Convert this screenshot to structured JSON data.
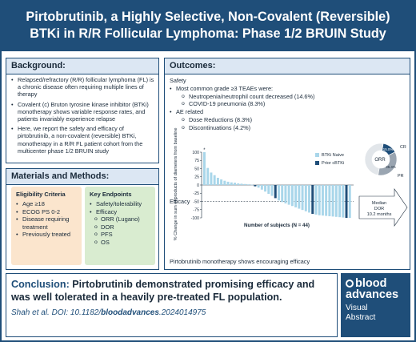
{
  "header": {
    "title_line1": "Pirtobrutinib, a Highly Selective, Non-Covalent (Reversible)",
    "title_line2": "BTKi in R/R Follicular Lymphoma: Phase 1/2 BRUIN Study"
  },
  "background": {
    "title": "Background:",
    "bullets": [
      "Relapsed/refractory (R/R) follicular lymphoma (FL) is a chronic disease often requiring multiple lines of therapy",
      "Covalent (c) Bruton tyrosine kinase inhibitor (BTKi) monotherapy shows variable response rates, and patients invariably experience relapse",
      "Here, we report the safety and efficacy of pirtobrutinib, a non-covalent (reversible) BTKi, monotherapy in a R/R FL patient cohort from the multicenter phase 1/2 BRUIN study"
    ]
  },
  "methods": {
    "title": "Materials and Methods:",
    "eligibility": {
      "title": "Eligibility Criteria",
      "items": [
        "Age ≥18",
        "ECOG PS 0-2",
        "Disease requiring treatment",
        "Previously treated"
      ]
    },
    "endpoints": {
      "title": "Key Endpoints",
      "items": [
        "Safety/tolerability",
        "Efficacy"
      ],
      "sub_items": [
        "ORR (Lugano)",
        "DOR",
        "PFS",
        "OS"
      ]
    }
  },
  "outcomes": {
    "title": "Outcomes:",
    "safety_label": "Safety",
    "safety_bullet": "Most common grade ≥3 TEAEs were:",
    "safety_sub": [
      "Neutropenia/neutrophil count decreased (14.6%)",
      "COVID-19 pneumonia (8.3%)"
    ],
    "ae_bullet": "AE related",
    "ae_sub": [
      "Dose Reductions (8.3%)",
      "Discontinuations (4.2%)"
    ],
    "efficacy_label": "Efficacy",
    "footnote": "Pirtobrutinib monotherapy shows encouraging efficacy"
  },
  "chart_data": {
    "type": "bar",
    "ylabel": "% Change in sum of products of diameters from baseline",
    "xlabel": "Number of subjects (N = 44)",
    "ylim": [
      -100,
      100
    ],
    "yticks": [
      100,
      75,
      50,
      25,
      0,
      -25,
      -50,
      -75,
      -100
    ],
    "reference_lines": [
      -50
    ],
    "legend": {
      "position": "top-right",
      "entries": [
        "BTKi Naive",
        "Prior cBTKi"
      ]
    },
    "series_colors": {
      "BTKi Naive": "#a9d6ea",
      "Prior cBTKi": "#1f4e79"
    },
    "arrow_marker": "*",
    "values": [
      100,
      52,
      38,
      30,
      22,
      17,
      13,
      10,
      8,
      7,
      5,
      4,
      3,
      2,
      1,
      -4,
      -8,
      -14,
      -20,
      -27,
      -33,
      -40,
      -47,
      -52,
      -56,
      -60,
      -64,
      -68,
      -72,
      -76,
      -80,
      -84,
      -88,
      -90,
      -92,
      -93,
      -94,
      -95,
      -96,
      -97,
      -98,
      -99,
      -100,
      -100
    ],
    "prior_cbtki_indices": [
      15,
      21,
      32,
      42
    ],
    "donut": {
      "label": "ORR",
      "segments": [
        {
          "name": "CR",
          "value": 15.0,
          "color": "#1f4e79",
          "label": "15.0%"
        },
        {
          "name": "PR",
          "value": 35.4,
          "color": "#9aa5b1",
          "label": "35.4%"
        },
        {
          "name": "other",
          "value": 49.6,
          "color": "#e2e6ea",
          "label": ""
        }
      ]
    },
    "callout": {
      "line1": "Median",
      "line2": "DOR",
      "line3": "10.2 months"
    }
  },
  "conclusion": {
    "label": "Conclusion:",
    "text": "Pirtobrutinib demonstrated promising efficacy and was well tolerated in a heavily pre-treated FL population.",
    "cite_prefix": "Shah et al. DOI: 10.1182/",
    "cite_bold": "bloodadvances",
    "cite_suffix": ".2024014975"
  },
  "logo": {
    "line1": "blood",
    "line2": "advances",
    "line3": "Visual",
    "line4": "Abstract"
  }
}
